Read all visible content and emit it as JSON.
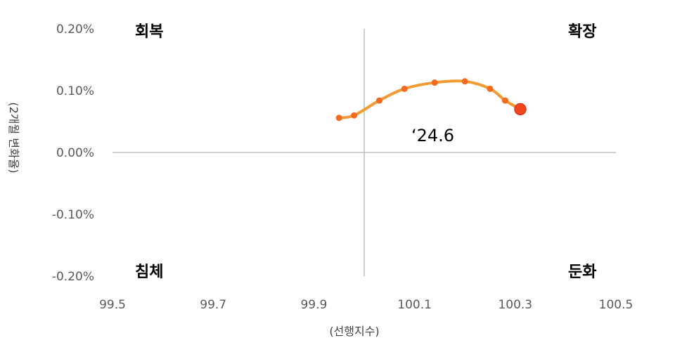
{
  "chart_data": {
    "type": "scatter",
    "title": "",
    "xlabel": "(선행지수)",
    "ylabel": "(2개월 변화율)",
    "xlim": [
      99.5,
      100.5
    ],
    "ylim": [
      -0.2,
      0.2
    ],
    "x_ticks": [
      "99.5",
      "99.7",
      "99.9",
      "100.1",
      "100.3",
      "100.5"
    ],
    "y_ticks": [
      "0.20%",
      "0.10%",
      "0.00%",
      "-0.10%",
      "-0.20%"
    ],
    "grid": false,
    "quadrants": {
      "top_left": "회복",
      "top_right": "확장",
      "bottom_left": "침체",
      "bottom_right": "둔화"
    },
    "series": [
      {
        "x": [
          99.95,
          99.98,
          100.03,
          100.08,
          100.14,
          100.2,
          100.25,
          100.28,
          100.31
        ],
        "y": [
          0.056,
          0.06,
          0.084,
          0.103,
          0.113,
          0.115,
          0.103,
          0.084,
          0.07
        ],
        "color": "#F39A33",
        "marker_color": "#F26B21"
      }
    ],
    "highlight": {
      "x": 100.31,
      "y": 0.07,
      "label": "‘24.6",
      "color": "#F0461E"
    }
  }
}
